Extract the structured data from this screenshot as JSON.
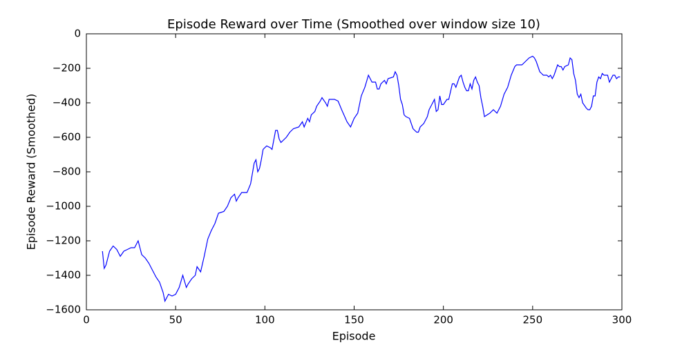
{
  "chart_data": {
    "type": "line",
    "title": "Episode Reward over Time (Smoothed over window size 10)",
    "x_label": "Episode",
    "y_label": "Episode Reward (Smoothed)",
    "color": "#0000ff",
    "x": [
      9,
      10,
      11,
      13,
      15,
      17,
      19,
      21,
      23,
      25,
      27,
      29,
      31,
      33,
      35,
      37,
      39,
      41,
      43,
      44,
      46,
      48,
      50,
      52,
      54,
      56,
      57,
      59,
      61,
      62,
      64,
      66,
      68,
      70,
      72,
      74,
      77,
      79,
      81,
      83,
      84,
      85,
      87,
      90,
      92,
      94,
      95,
      96,
      97,
      98,
      99,
      101,
      103,
      104,
      106,
      107,
      108,
      109,
      112,
      114,
      116,
      119,
      121,
      122,
      124,
      125,
      126,
      128,
      129,
      131,
      132,
      134,
      135,
      136,
      139,
      141,
      143,
      146,
      148,
      150,
      152,
      154,
      156,
      158,
      160,
      162,
      163,
      164,
      165,
      167,
      168,
      169,
      172,
      173,
      174,
      175,
      176,
      177,
      178,
      179,
      181,
      183,
      185,
      186,
      187,
      189,
      190,
      191,
      192,
      193,
      195,
      196,
      197,
      198,
      199,
      200,
      202,
      203,
      205,
      206,
      207,
      209,
      210,
      211,
      212,
      213,
      214,
      215,
      216,
      217,
      218,
      219,
      220,
      221,
      222,
      223,
      226,
      228,
      230,
      232,
      234,
      236,
      238,
      240,
      241,
      244,
      246,
      248,
      250,
      251,
      252,
      253,
      254,
      255,
      256,
      258,
      259,
      260,
      261,
      262,
      263,
      264,
      265,
      266,
      267,
      268,
      270,
      271,
      272,
      273,
      274,
      275,
      276,
      277,
      278,
      280,
      281,
      282,
      283,
      284,
      285,
      286,
      287,
      288,
      289,
      290,
      292,
      293,
      294,
      295,
      296,
      297,
      298,
      299
    ],
    "values": [
      -1260,
      -1360,
      -1340,
      -1260,
      -1230,
      -1250,
      -1290,
      -1260,
      -1250,
      -1240,
      -1240,
      -1200,
      -1280,
      -1300,
      -1330,
      -1370,
      -1410,
      -1440,
      -1500,
      -1550,
      -1510,
      -1520,
      -1510,
      -1470,
      -1400,
      -1470,
      -1450,
      -1420,
      -1400,
      -1350,
      -1380,
      -1290,
      -1190,
      -1140,
      -1100,
      -1040,
      -1030,
      -1000,
      -950,
      -930,
      -970,
      -950,
      -920,
      -920,
      -870,
      -750,
      -730,
      -800,
      -780,
      -730,
      -670,
      -650,
      -660,
      -670,
      -560,
      -560,
      -610,
      -630,
      -600,
      -570,
      -550,
      -540,
      -510,
      -540,
      -490,
      -510,
      -470,
      -450,
      -420,
      -390,
      -370,
      -400,
      -420,
      -380,
      -380,
      -390,
      -440,
      -510,
      -540,
      -490,
      -460,
      -360,
      -310,
      -240,
      -280,
      -280,
      -320,
      -320,
      -290,
      -270,
      -290,
      -260,
      -250,
      -220,
      -240,
      -300,
      -380,
      -410,
      -470,
      -480,
      -490,
      -550,
      -570,
      -570,
      -540,
      -520,
      -500,
      -480,
      -440,
      -420,
      -380,
      -450,
      -440,
      -360,
      -410,
      -410,
      -380,
      -380,
      -290,
      -290,
      -310,
      -250,
      -240,
      -280,
      -310,
      -330,
      -330,
      -290,
      -320,
      -270,
      -250,
      -280,
      -300,
      -370,
      -420,
      -480,
      -460,
      -440,
      -460,
      -420,
      -350,
      -310,
      -240,
      -190,
      -180,
      -180,
      -160,
      -140,
      -130,
      -140,
      -160,
      -190,
      -220,
      -230,
      -240,
      -240,
      -250,
      -240,
      -260,
      -240,
      -210,
      -180,
      -190,
      -190,
      -210,
      -190,
      -180,
      -140,
      -150,
      -230,
      -270,
      -350,
      -370,
      -350,
      -400,
      -430,
      -440,
      -440,
      -420,
      -360,
      -360,
      -280,
      -250,
      -260,
      -230,
      -240,
      -240,
      -280,
      -260,
      -240,
      -240,
      -260,
      -250,
      -250
    ],
    "xlim": [
      0,
      300
    ],
    "ylim": [
      -1600,
      0
    ],
    "xticks": [
      0,
      50,
      100,
      150,
      200,
      250,
      300
    ],
    "yticks": [
      {
        "value": -1600,
        "label": "−1600"
      },
      {
        "value": -1400,
        "label": "−1400"
      },
      {
        "value": -1200,
        "label": "−1200"
      },
      {
        "value": -1000,
        "label": "−1000"
      },
      {
        "value": -800,
        "label": "−800"
      },
      {
        "value": -600,
        "label": "−600"
      },
      {
        "value": -400,
        "label": "−400"
      },
      {
        "value": -200,
        "label": "−200"
      },
      0
    ],
    "grid": false
  }
}
